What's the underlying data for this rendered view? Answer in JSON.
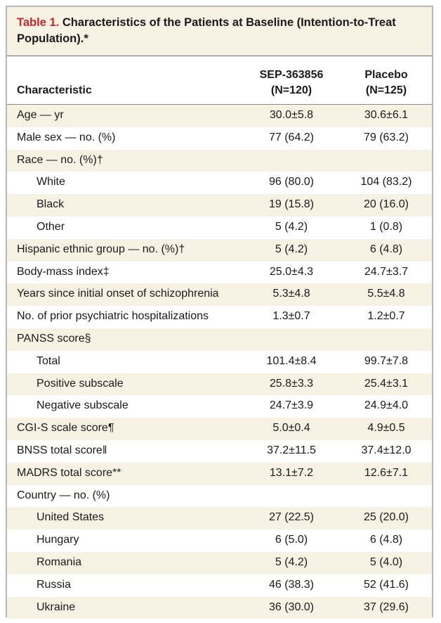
{
  "table": {
    "title_label": "Table 1.",
    "title_text": "Characteristics of the Patients at Baseline (Intention-to-Treat Population).*",
    "header": {
      "characteristic": "Characteristic",
      "col1_name": "SEP-363856",
      "col1_n": "(N=120)",
      "col2_name": "Placebo",
      "col2_n": "(N=125)"
    },
    "rows": [
      {
        "label": "Age — yr",
        "v1": "30.0±5.8",
        "v2": "30.6±6.1"
      },
      {
        "label": "Male sex — no. (%)",
        "v1": "77 (64.2)",
        "v2": "79 (63.2)"
      },
      {
        "label": "Race — no. (%)†",
        "v1": "",
        "v2": ""
      },
      {
        "label": "White",
        "v1": "96 (80.0)",
        "v2": "104 (83.2)"
      },
      {
        "label": "Black",
        "v1": "19 (15.8)",
        "v2": "20 (16.0)"
      },
      {
        "label": "Other",
        "v1": "5 (4.2)",
        "v2": "1 (0.8)"
      },
      {
        "label": "Hispanic ethnic group — no. (%)†",
        "v1": "5 (4.2)",
        "v2": "6 (4.8)"
      },
      {
        "label": "Body-mass index‡",
        "v1": "25.0±4.3",
        "v2": "24.7±3.7"
      },
      {
        "label": "Years since initial onset of schizophrenia",
        "v1": "5.3±4.8",
        "v2": "5.5±4.8"
      },
      {
        "label": "No. of prior psychiatric hospitalizations",
        "v1": "1.3±0.7",
        "v2": "1.2±0.7"
      },
      {
        "label": "PANSS score§",
        "v1": "",
        "v2": ""
      },
      {
        "label": "Total",
        "v1": "101.4±8.4",
        "v2": "99.7±7.8"
      },
      {
        "label": "Positive subscale",
        "v1": "25.8±3.3",
        "v2": "25.4±3.1"
      },
      {
        "label": "Negative subscale",
        "v1": "24.7±3.9",
        "v2": "24.9±4.0"
      },
      {
        "label": "CGI-S scale score¶",
        "v1": "5.0±0.4",
        "v2": "4.9±0.5"
      },
      {
        "label": "BNSS total score‖",
        "v1": "37.2±11.5",
        "v2": "37.4±12.0"
      },
      {
        "label": "MADRS total score**",
        "v1": "13.1±7.2",
        "v2": "12.6±7.1"
      },
      {
        "label": "Country — no. (%)",
        "v1": "",
        "v2": ""
      },
      {
        "label": "United States",
        "v1": "27 (22.5)",
        "v2": "25 (20.0)"
      },
      {
        "label": "Hungary",
        "v1": "6 (5.0)",
        "v2": "6 (4.8)"
      },
      {
        "label": "Romania",
        "v1": "5 (4.2)",
        "v2": "5 (4.0)"
      },
      {
        "label": "Russia",
        "v1": "46 (38.3)",
        "v2": "52 (41.6)"
      },
      {
        "label": "Ukraine",
        "v1": "36 (30.0)",
        "v2": "37 (29.6)"
      }
    ]
  }
}
